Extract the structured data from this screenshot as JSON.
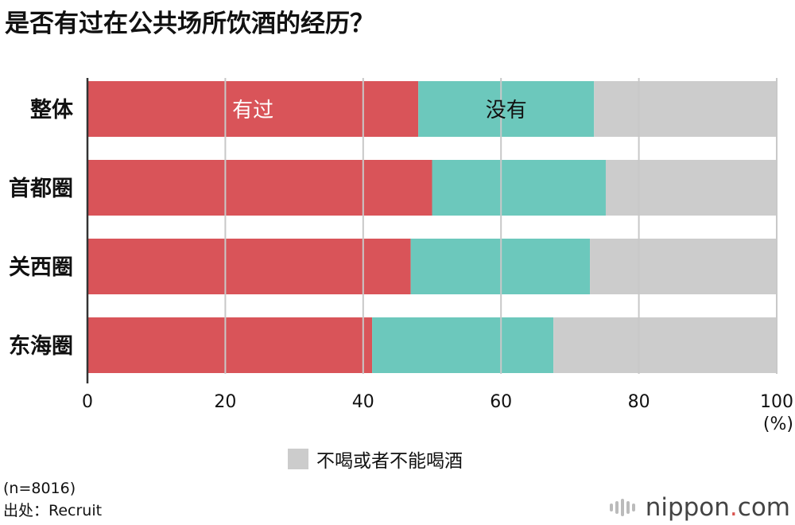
{
  "title": "是否有过在公共场所饮酒的经历？",
  "chart_data": {
    "type": "bar",
    "orientation": "horizontal",
    "stacked": true,
    "categories": [
      "整体",
      "首都圈",
      "关西圈",
      "东海圈"
    ],
    "series": [
      {
        "name": "有过",
        "color": "#d95459",
        "values": [
          48.0,
          50.0,
          46.9,
          41.3
        ]
      },
      {
        "name": "没有",
        "color": "#6cc8bc",
        "values": [
          25.5,
          25.2,
          26.0,
          26.3
        ]
      },
      {
        "name": "不喝或者不能喝酒",
        "color": "#cccccc",
        "values": [
          26.5,
          24.8,
          27.1,
          32.4
        ]
      }
    ],
    "xlim": [
      0,
      100
    ],
    "x_ticks": [
      "0",
      "20",
      "40",
      "60",
      "80",
      "100"
    ],
    "x_unit": "(%)",
    "grid": true,
    "inline_labels": [
      "有过",
      "没有"
    ],
    "legend": {
      "label": "不喝或者不能喝酒",
      "color": "#cccccc",
      "placement": "bottom"
    }
  },
  "note": {
    "sample": "(n=8016)",
    "source_label": "出处：",
    "source_value": "Recruit"
  },
  "brand": {
    "name": "nippon",
    "dot": ".",
    "suffix": "com"
  }
}
